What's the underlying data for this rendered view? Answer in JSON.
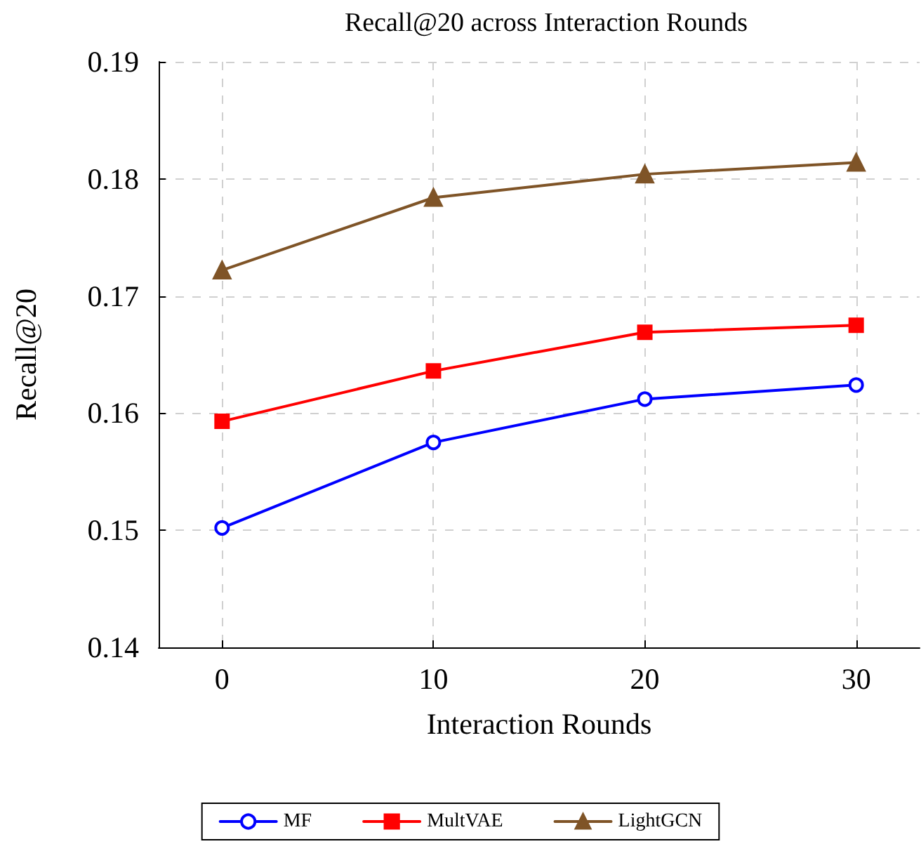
{
  "chart_data": {
    "type": "line",
    "title": "Recall@20 across Interaction Rounds",
    "xlabel": "Interaction Rounds",
    "ylabel": "Recall@20",
    "x": [
      0,
      10,
      20,
      30
    ],
    "series": [
      {
        "name": "MF",
        "color": "#0000ff",
        "marker": "circle",
        "values": [
          0.1502,
          0.1575,
          0.1612,
          0.1624
        ]
      },
      {
        "name": "MultVAE",
        "color": "#ff0000",
        "marker": "square",
        "values": [
          0.1593,
          0.1636,
          0.1669,
          0.1675
        ]
      },
      {
        "name": "LightGCN",
        "color": "#7f5427",
        "marker": "triangle",
        "values": [
          0.1722,
          0.1784,
          0.1804,
          0.1814
        ]
      }
    ],
    "xlim": [
      -3,
      33
    ],
    "xticks": [
      0,
      10,
      20,
      30
    ],
    "ylim": [
      0.14,
      0.19
    ],
    "yticks": [
      0.14,
      0.15,
      0.16,
      0.17,
      0.18,
      0.19
    ],
    "grid": true,
    "legend": "bottom",
    "line_style": "solid"
  }
}
